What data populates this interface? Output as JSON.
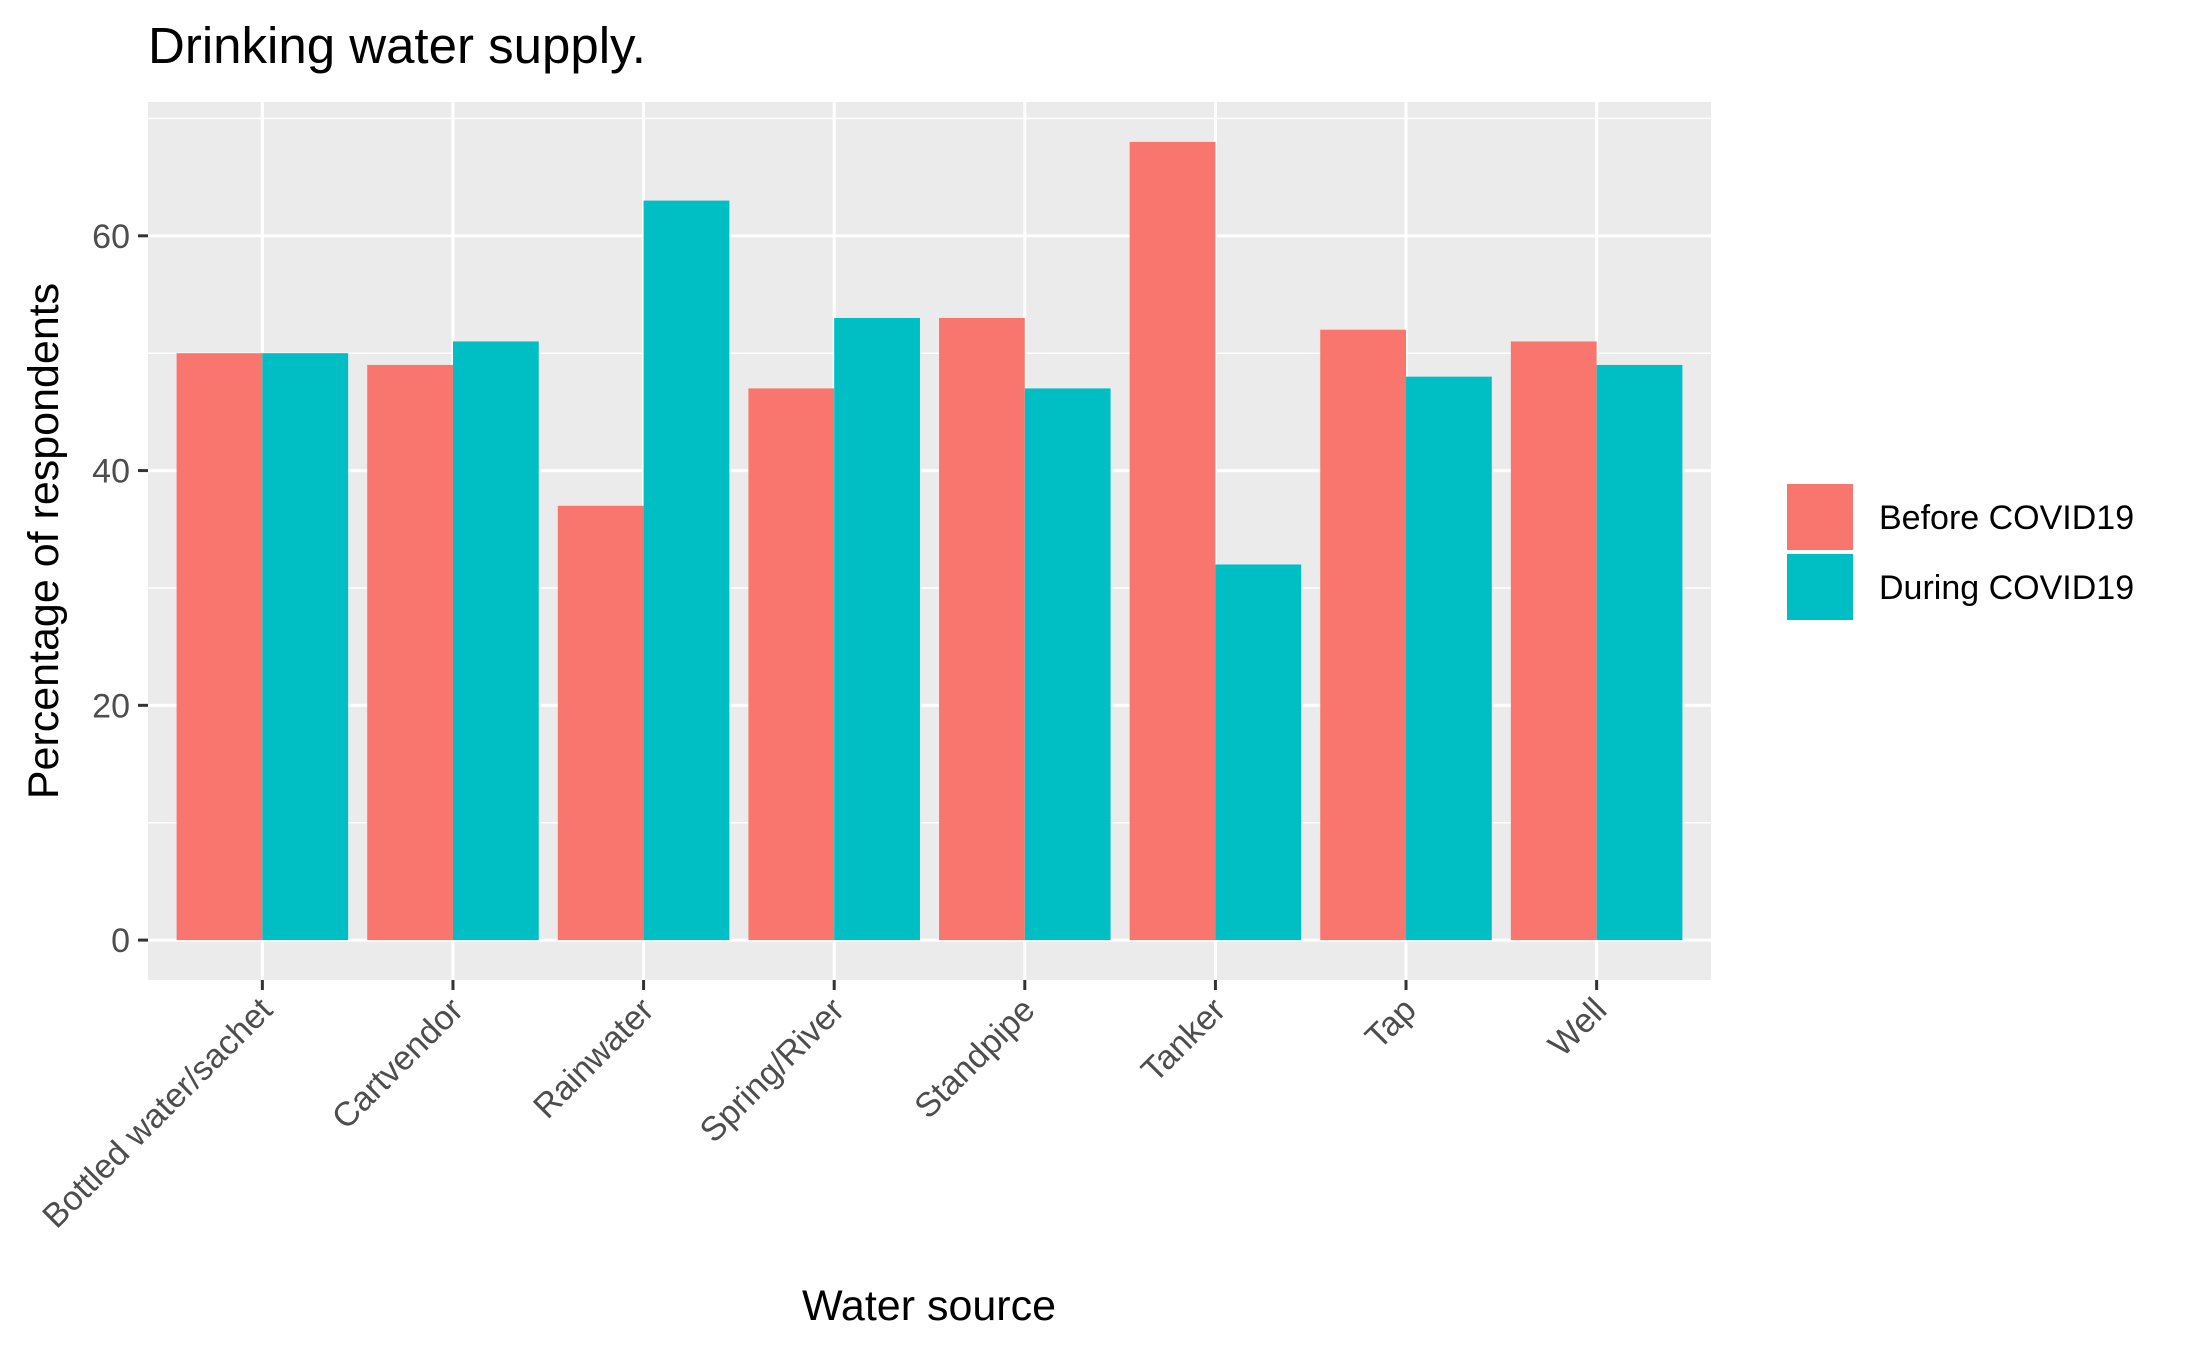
{
  "chart_data": {
    "type": "bar",
    "title": "Drinking water supply.",
    "xlabel": "Water source",
    "ylabel": "Percentage of respondents",
    "categories": [
      "Bottled water/sachet",
      "Cartvendor",
      "Rainwater",
      "Spring/River",
      "Standpipe",
      "Tanker",
      "Tap",
      "Well"
    ],
    "series": [
      {
        "name": "Before COVID19",
        "color": "#F8766D",
        "values": [
          50,
          49,
          37,
          47,
          53,
          68,
          52,
          51
        ]
      },
      {
        "name": "During COVID19",
        "color": "#00BFC4",
        "values": [
          50,
          51,
          63,
          53,
          47,
          32,
          48,
          49
        ]
      }
    ],
    "ylim": [
      -3.4,
      71.4
    ],
    "yticks": [
      0,
      20,
      40,
      60
    ],
    "grid": true,
    "legend_position": "right",
    "panel_background": "#EBEBEB",
    "grid_color": "#FFFFFF"
  }
}
